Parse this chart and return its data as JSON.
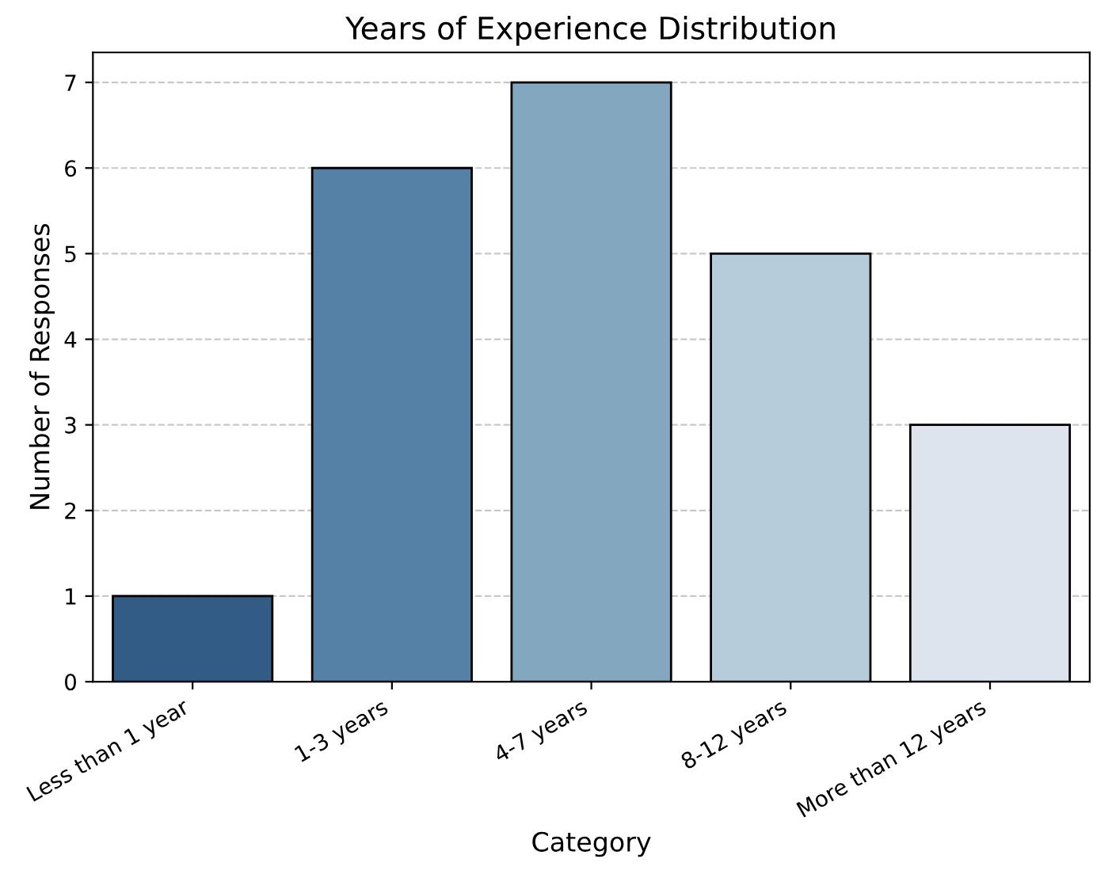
{
  "chart_data": {
    "type": "bar",
    "title": "Years of Experience Distribution",
    "xlabel": "Category",
    "ylabel": "Number of Responses",
    "categories": [
      "Less than 1 year",
      "1-3 years",
      "4-7 years",
      "8-12 years",
      "More than 12 years"
    ],
    "values": [
      1,
      6,
      7,
      5,
      3
    ],
    "colors": [
      "#245b94",
      "#4782b2",
      "#78a9c9",
      "#b1cde0",
      "#dae4f0"
    ],
    "ylim": [
      0,
      7.35
    ],
    "yticks": [
      0,
      1,
      2,
      3,
      4,
      5,
      6,
      7
    ],
    "grid": "y"
  }
}
